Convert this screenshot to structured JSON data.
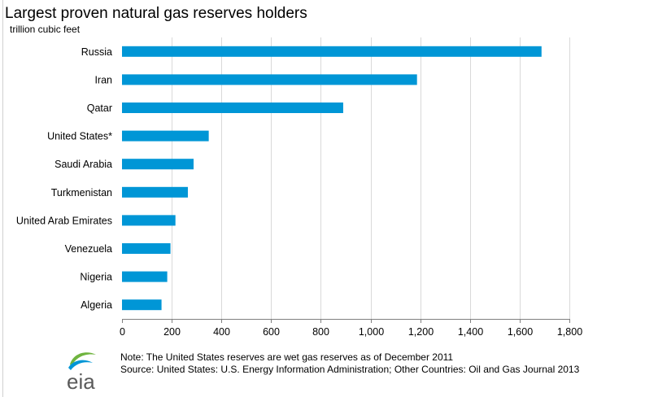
{
  "header": {
    "title": "Largest proven natural gas reserves holders",
    "subtitle": "trillion cubic feet"
  },
  "chart_data": {
    "type": "bar",
    "orientation": "horizontal",
    "title": "Largest proven natural gas reserves holders",
    "subtitle": "trillion cubic feet",
    "xlabel": "",
    "ylabel": "",
    "categories": [
      "Russia",
      "Iran",
      "Qatar",
      "United States*",
      "Saudi Arabia",
      "Turkmenistan",
      "United Arab Emirates",
      "Venezuela",
      "Nigeria",
      "Algeria"
    ],
    "values": [
      1688,
      1187,
      890,
      349,
      288,
      265,
      215,
      195,
      182,
      159
    ],
    "xlim": [
      0,
      1800
    ],
    "ticks": [
      0,
      200,
      400,
      600,
      800,
      1000,
      1200,
      1400,
      1600,
      1800
    ],
    "tick_labels": [
      "0",
      "200",
      "400",
      "600",
      "800",
      "1,000",
      "1,200",
      "1,400",
      "1,600",
      "1,800"
    ],
    "grid": "vertical",
    "bar_color": "#0096d6",
    "grid_color": "#d9d9d9",
    "axis_color": "#808080"
  },
  "footer": {
    "logo_text": "eia",
    "note": "Note: The United States reserves  are wet gas reserves  as of December 2011",
    "source": "Source: United States: U.S. Energy Information  Administration;  Other Countries:  Oil and Gas Journal 2013"
  }
}
